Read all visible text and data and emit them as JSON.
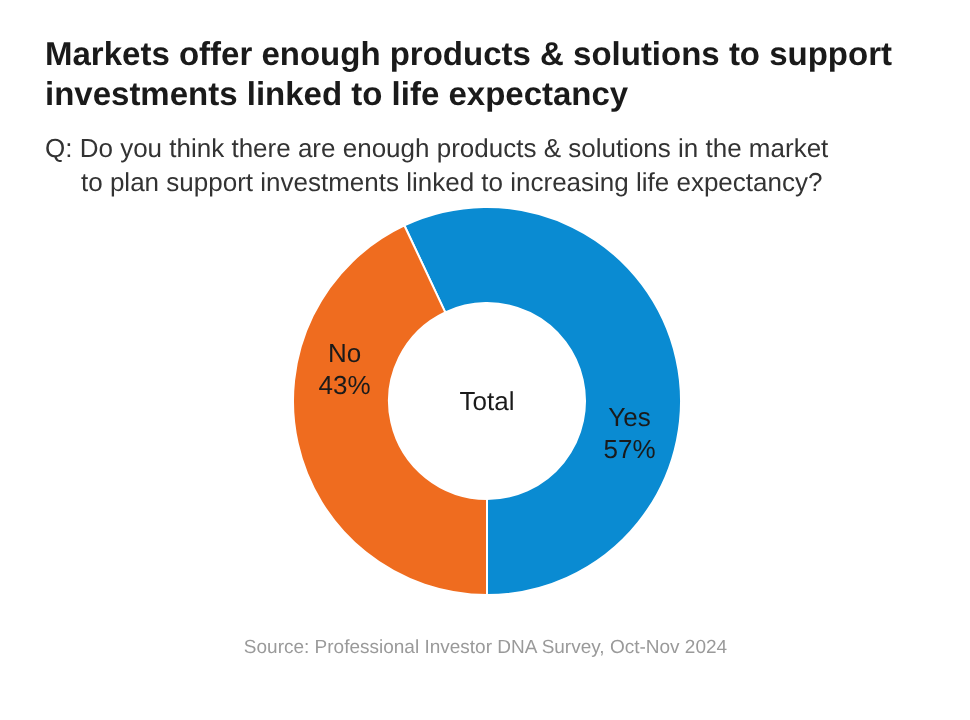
{
  "chart_data": {
    "type": "donut",
    "title": "Markets offer enough products & solutions to support\ninvestments linked to life expectancy",
    "subtitle": "Q: Do you think there are enough products & solutions in the market\nto plan support investments linked to increasing life expectancy?",
    "categories": [
      "Yes",
      "No"
    ],
    "values": [
      57,
      43
    ],
    "value_labels": [
      "57%",
      "43%"
    ],
    "colors": [
      "#0a8bd2",
      "#ef6c1f"
    ],
    "annotations": [
      "Total",
      "Source: Professional Investor DNA Survey, Oct-Nov 2024"
    ]
  }
}
